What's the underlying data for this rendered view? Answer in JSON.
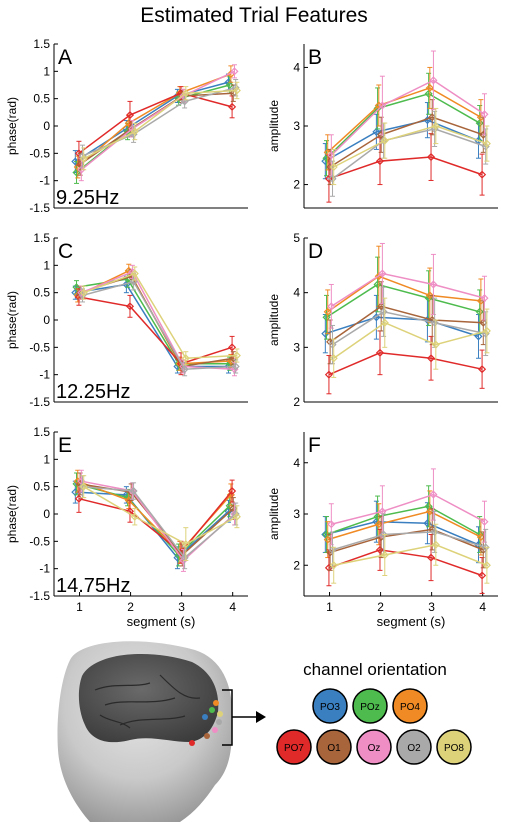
{
  "figure": {
    "title": "Estimated Trial Features",
    "legend_title": "channel orientation"
  },
  "channels": [
    {
      "name": "PO3",
      "color": "#3a7fc0"
    },
    {
      "name": "POz",
      "color": "#4dbb4d"
    },
    {
      "name": "PO4",
      "color": "#f08a24"
    },
    {
      "name": "PO7",
      "color": "#e02a2a"
    },
    {
      "name": "O1",
      "color": "#a8643a"
    },
    {
      "name": "Oz",
      "color": "#ee8ec4"
    },
    {
      "name": "O2",
      "color": "#a9a9a9"
    },
    {
      "name": "PO8",
      "color": "#ddd27a"
    }
  ],
  "head_illustration": {
    "icon": "head-brain-electrode-icon"
  },
  "chart_data": [
    {
      "type": "line",
      "panel_label": "A",
      "annotation": "9.25Hz",
      "xlabel": "",
      "ylabel": "phase(rad)",
      "x": [
        1,
        2,
        3,
        4
      ],
      "xlim": [
        0.5,
        4.3
      ],
      "ylim": [
        -1.5,
        1.5
      ],
      "yticks": [
        -1.5,
        -1,
        -0.5,
        0,
        0.5,
        1,
        1.5
      ],
      "xticks": [],
      "yticklabels": [
        "-1.5",
        "-1",
        "-0.5",
        "0",
        "0.5",
        "1",
        "1.5"
      ],
      "series": [
        {
          "channel": "PO3",
          "values": [
            -0.65,
            -0.05,
            0.55,
            0.8
          ],
          "err": [
            0.2,
            0.15,
            0.12,
            0.15
          ]
        },
        {
          "channel": "POz",
          "values": [
            -0.85,
            -0.1,
            0.5,
            0.75
          ],
          "err": [
            0.2,
            0.15,
            0.12,
            0.15
          ]
        },
        {
          "channel": "PO4",
          "values": [
            -0.75,
            0.05,
            0.6,
            0.95
          ],
          "err": [
            0.2,
            0.15,
            0.12,
            0.15
          ]
        },
        {
          "channel": "PO7",
          "values": [
            -0.5,
            0.2,
            0.6,
            0.35
          ],
          "err": [
            0.22,
            0.25,
            0.12,
            0.2
          ]
        },
        {
          "channel": "O1",
          "values": [
            -0.7,
            -0.05,
            0.55,
            0.6
          ],
          "err": [
            0.2,
            0.15,
            0.12,
            0.15
          ]
        },
        {
          "channel": "Oz",
          "values": [
            -0.8,
            -0.05,
            0.55,
            1.0
          ],
          "err": [
            0.2,
            0.15,
            0.12,
            0.12
          ]
        },
        {
          "channel": "O2",
          "values": [
            -0.55,
            -0.15,
            0.45,
            0.7
          ],
          "err": [
            0.2,
            0.15,
            0.12,
            0.15
          ]
        },
        {
          "channel": "PO8",
          "values": [
            -0.6,
            -0.1,
            0.6,
            0.65
          ],
          "err": [
            0.2,
            0.15,
            0.12,
            0.15
          ]
        }
      ]
    },
    {
      "type": "line",
      "panel_label": "B",
      "annotation": "",
      "xlabel": "",
      "ylabel": "amplitude",
      "x": [
        1,
        2,
        3,
        4
      ],
      "xlim": [
        0.5,
        4.3
      ],
      "ylim": [
        1.6,
        4.4
      ],
      "yticks": [
        2,
        3,
        4
      ],
      "xticks": [],
      "yticklabels": [
        "2",
        "3",
        "4"
      ],
      "series": [
        {
          "channel": "PO3",
          "values": [
            2.4,
            2.9,
            3.1,
            2.75
          ],
          "err": [
            0.3,
            0.3,
            0.3,
            0.3
          ]
        },
        {
          "channel": "POz",
          "values": [
            2.45,
            3.3,
            3.55,
            3.05
          ],
          "err": [
            0.3,
            0.35,
            0.35,
            0.3
          ]
        },
        {
          "channel": "PO4",
          "values": [
            2.55,
            3.35,
            3.65,
            3.15
          ],
          "err": [
            0.3,
            0.35,
            0.35,
            0.3
          ]
        },
        {
          "channel": "PO7",
          "values": [
            2.1,
            2.4,
            2.47,
            2.17
          ],
          "err": [
            0.4,
            0.4,
            0.4,
            0.35
          ]
        },
        {
          "channel": "O1",
          "values": [
            2.3,
            2.85,
            3.15,
            2.85
          ],
          "err": [
            0.3,
            0.3,
            0.3,
            0.3
          ]
        },
        {
          "channel": "Oz",
          "values": [
            2.5,
            3.35,
            3.78,
            3.2
          ],
          "err": [
            0.35,
            0.5,
            0.5,
            0.35
          ]
        },
        {
          "channel": "O2",
          "values": [
            2.1,
            2.75,
            2.95,
            2.65
          ],
          "err": [
            0.3,
            0.3,
            0.3,
            0.3
          ]
        },
        {
          "channel": "PO8",
          "values": [
            2.3,
            2.75,
            3.0,
            2.7
          ],
          "err": [
            0.3,
            0.3,
            0.3,
            0.3
          ]
        }
      ]
    },
    {
      "type": "line",
      "panel_label": "C",
      "annotation": "12.25Hz",
      "xlabel": "",
      "ylabel": "phase(rad)",
      "x": [
        1,
        2,
        3,
        4
      ],
      "xlim": [
        0.5,
        4.3
      ],
      "ylim": [
        -1.5,
        1.5
      ],
      "yticks": [
        -1.5,
        -1,
        -0.5,
        0,
        0.5,
        1,
        1.5
      ],
      "xticks": [],
      "yticklabels": [
        "-1.5",
        "-1",
        "-0.5",
        "0",
        "0.5",
        "1",
        "1.5"
      ],
      "series": [
        {
          "channel": "PO3",
          "values": [
            0.5,
            0.65,
            -0.85,
            -0.85
          ],
          "err": [
            0.12,
            0.15,
            0.12,
            0.12
          ]
        },
        {
          "channel": "POz",
          "values": [
            0.6,
            0.75,
            -0.8,
            -0.8
          ],
          "err": [
            0.12,
            0.15,
            0.12,
            0.12
          ]
        },
        {
          "channel": "PO4",
          "values": [
            0.45,
            0.9,
            -0.8,
            -0.75
          ],
          "err": [
            0.12,
            0.12,
            0.12,
            0.12
          ]
        },
        {
          "channel": "PO7",
          "values": [
            0.42,
            0.25,
            -0.8,
            -0.5
          ],
          "err": [
            0.15,
            0.2,
            0.2,
            0.2
          ]
        },
        {
          "channel": "O1",
          "values": [
            0.5,
            0.8,
            -0.85,
            -0.7
          ],
          "err": [
            0.12,
            0.12,
            0.12,
            0.12
          ]
        },
        {
          "channel": "Oz",
          "values": [
            0.5,
            0.88,
            -0.85,
            -0.9
          ],
          "err": [
            0.12,
            0.12,
            0.12,
            0.12
          ]
        },
        {
          "channel": "O2",
          "values": [
            0.45,
            0.7,
            -0.9,
            -0.85
          ],
          "err": [
            0.12,
            0.15,
            0.12,
            0.12
          ]
        },
        {
          "channel": "PO8",
          "values": [
            0.5,
            0.85,
            -0.7,
            -0.65
          ],
          "err": [
            0.12,
            0.12,
            0.12,
            0.12
          ]
        }
      ]
    },
    {
      "type": "line",
      "panel_label": "D",
      "annotation": "",
      "xlabel": "",
      "ylabel": "amplitude",
      "x": [
        1,
        2,
        3,
        4
      ],
      "xlim": [
        0.5,
        4.3
      ],
      "ylim": [
        2,
        5
      ],
      "yticks": [
        2,
        3,
        4,
        5
      ],
      "xticks": [],
      "yticklabels": [
        "2",
        "3",
        "4",
        "5"
      ],
      "series": [
        {
          "channel": "PO3",
          "values": [
            3.25,
            3.55,
            3.5,
            3.2
          ],
          "err": [
            0.35,
            0.4,
            0.4,
            0.4
          ]
        },
        {
          "channel": "POz",
          "values": [
            3.55,
            4.15,
            3.9,
            3.65
          ],
          "err": [
            0.4,
            0.5,
            0.5,
            0.4
          ]
        },
        {
          "channel": "PO4",
          "values": [
            3.65,
            4.3,
            3.95,
            3.85
          ],
          "err": [
            0.4,
            0.55,
            0.5,
            0.4
          ]
        },
        {
          "channel": "PO7",
          "values": [
            2.5,
            2.9,
            2.8,
            2.6
          ],
          "err": [
            0.35,
            0.4,
            0.4,
            0.35
          ]
        },
        {
          "channel": "O1",
          "values": [
            3.1,
            3.75,
            3.5,
            3.45
          ],
          "err": [
            0.4,
            0.45,
            0.45,
            0.4
          ]
        },
        {
          "channel": "Oz",
          "values": [
            3.75,
            4.35,
            4.15,
            3.9
          ],
          "err": [
            0.4,
            0.55,
            0.55,
            0.4
          ]
        },
        {
          "channel": "O2",
          "values": [
            3.05,
            3.65,
            3.45,
            3.25
          ],
          "err": [
            0.35,
            0.45,
            0.45,
            0.4
          ]
        },
        {
          "channel": "PO8",
          "values": [
            2.8,
            3.45,
            3.05,
            3.3
          ],
          "err": [
            0.35,
            0.45,
            0.45,
            0.4
          ]
        }
      ]
    },
    {
      "type": "line",
      "panel_label": "E",
      "annotation": "14.75Hz",
      "xlabel": "segment (s)",
      "ylabel": "phase(rad)",
      "x": [
        1,
        2,
        3,
        4
      ],
      "xlim": [
        0.5,
        4.3
      ],
      "ylim": [
        -1.5,
        1.5
      ],
      "yticks": [
        -1.5,
        -1,
        -0.5,
        0,
        0.5,
        1,
        1.5
      ],
      "xticks": [
        1,
        2,
        3,
        4
      ],
      "yticklabels": [
        "-1.5",
        "-1",
        "-0.5",
        "0",
        "0.5",
        "1",
        "1.5"
      ],
      "series": [
        {
          "channel": "PO3",
          "values": [
            0.4,
            0.35,
            -0.8,
            0.05
          ],
          "err": [
            0.2,
            0.15,
            0.2,
            0.2
          ]
        },
        {
          "channel": "POz",
          "values": [
            0.55,
            0.3,
            -0.75,
            0.15
          ],
          "err": [
            0.2,
            0.15,
            0.2,
            0.2
          ]
        },
        {
          "channel": "PO4",
          "values": [
            0.6,
            0.25,
            -0.7,
            0.35
          ],
          "err": [
            0.2,
            0.15,
            0.2,
            0.2
          ]
        },
        {
          "channel": "PO7",
          "values": [
            0.28,
            0.05,
            -0.7,
            0.42
          ],
          "err": [
            0.25,
            0.2,
            0.2,
            0.2
          ]
        },
        {
          "channel": "O1",
          "values": [
            0.55,
            0.4,
            -0.75,
            0.1
          ],
          "err": [
            0.2,
            0.15,
            0.2,
            0.2
          ]
        },
        {
          "channel": "Oz",
          "values": [
            0.6,
            0.42,
            -0.85,
            0.0
          ],
          "err": [
            0.2,
            0.15,
            0.2,
            0.2
          ]
        },
        {
          "channel": "O2",
          "values": [
            0.5,
            0.42,
            -0.8,
            0.0
          ],
          "err": [
            0.2,
            0.15,
            0.2,
            0.2
          ]
        },
        {
          "channel": "PO8",
          "values": [
            0.5,
            -0.05,
            -0.55,
            -0.05
          ],
          "err": [
            0.2,
            0.15,
            0.3,
            0.2
          ]
        }
      ]
    },
    {
      "type": "line",
      "panel_label": "F",
      "annotation": "",
      "xlabel": "segment (s)",
      "ylabel": "amplitude",
      "x": [
        1,
        2,
        3,
        4
      ],
      "xlim": [
        0.5,
        4.3
      ],
      "ylim": [
        1.4,
        4.6
      ],
      "yticks": [
        2,
        3,
        4
      ],
      "xticks": [
        1,
        2,
        3,
        4
      ],
      "yticklabels": [
        "2",
        "3",
        "4"
      ],
      "series": [
        {
          "channel": "PO3",
          "values": [
            2.6,
            2.85,
            2.82,
            2.4
          ],
          "err": [
            0.35,
            0.4,
            0.4,
            0.35
          ]
        },
        {
          "channel": "POz",
          "values": [
            2.6,
            2.95,
            3.15,
            2.6
          ],
          "err": [
            0.35,
            0.4,
            0.4,
            0.35
          ]
        },
        {
          "channel": "PO4",
          "values": [
            2.5,
            2.8,
            3.05,
            2.55
          ],
          "err": [
            0.35,
            0.4,
            0.4,
            0.35
          ]
        },
        {
          "channel": "PO7",
          "values": [
            1.95,
            2.3,
            2.15,
            1.8
          ],
          "err": [
            0.35,
            0.4,
            0.45,
            0.35
          ]
        },
        {
          "channel": "O1",
          "values": [
            2.25,
            2.55,
            2.7,
            2.3
          ],
          "err": [
            0.35,
            0.4,
            0.4,
            0.35
          ]
        },
        {
          "channel": "Oz",
          "values": [
            2.8,
            3.05,
            3.38,
            2.85
          ],
          "err": [
            0.4,
            0.5,
            0.5,
            0.4
          ]
        },
        {
          "channel": "O2",
          "values": [
            2.3,
            2.6,
            2.65,
            2.35
          ],
          "err": [
            0.35,
            0.4,
            0.4,
            0.35
          ]
        },
        {
          "channel": "PO8",
          "values": [
            2.0,
            2.2,
            2.4,
            2.0
          ],
          "err": [
            0.35,
            0.4,
            0.4,
            0.35
          ]
        }
      ]
    }
  ]
}
